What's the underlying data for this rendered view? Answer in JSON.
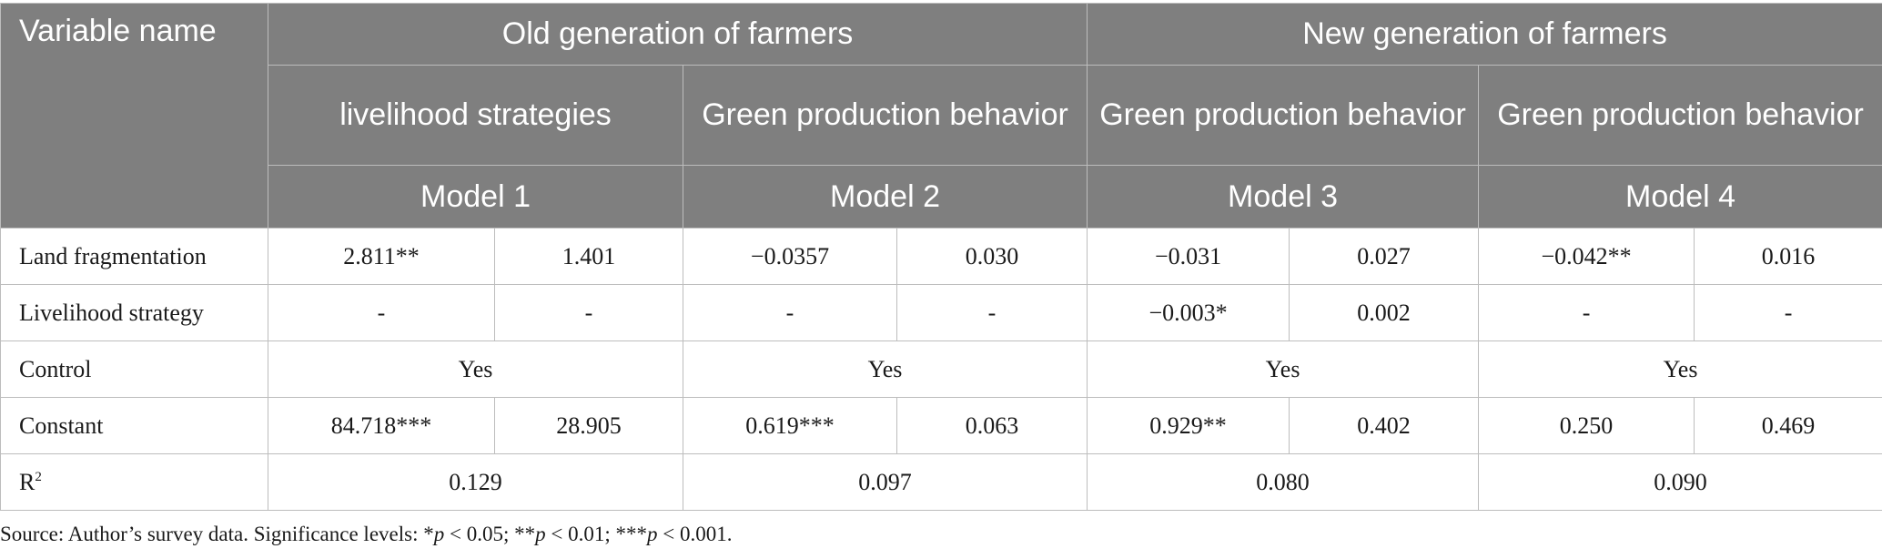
{
  "header": {
    "variable_name": "Variable name",
    "group_old": "Old generation of farmers",
    "group_new": "New generation of farmers",
    "dep_vars": [
      "livelihood strategies",
      "Green production behavior",
      "Green production behavior",
      "Green production behavior"
    ],
    "models": [
      "Model 1",
      "Model 2",
      "Model 3",
      "Model 4"
    ]
  },
  "rows": [
    {
      "label": "Land fragmentation",
      "cells": [
        "2.811**",
        "1.401",
        "−0.0357",
        "0.030",
        "−0.031",
        "0.027",
        "−0.042**",
        "0.016"
      ]
    },
    {
      "label": "Livelihood strategy",
      "cells": [
        "-",
        "-",
        "-",
        "-",
        "−0.003*",
        "0.002",
        "-",
        "-"
      ]
    },
    {
      "label": "Control",
      "merged": [
        "Yes",
        "Yes",
        "Yes",
        "Yes"
      ]
    },
    {
      "label": "Constant",
      "cells": [
        "84.718***",
        "28.905",
        "0.619***",
        "0.063",
        "0.929**",
        "0.402",
        "0.250",
        "0.469"
      ]
    },
    {
      "label": "R",
      "label_sup": "2",
      "merged": [
        "0.129",
        "0.097",
        "0.080",
        "0.090"
      ]
    }
  ],
  "note": {
    "prefix": "Source: Author’s survey data. Significance levels: *",
    "p1": "p",
    "t1": " < 0.05; **",
    "p2": "p",
    "t2": " < 0.01; ***",
    "p3": "p",
    "t3": " < 0.001."
  }
}
